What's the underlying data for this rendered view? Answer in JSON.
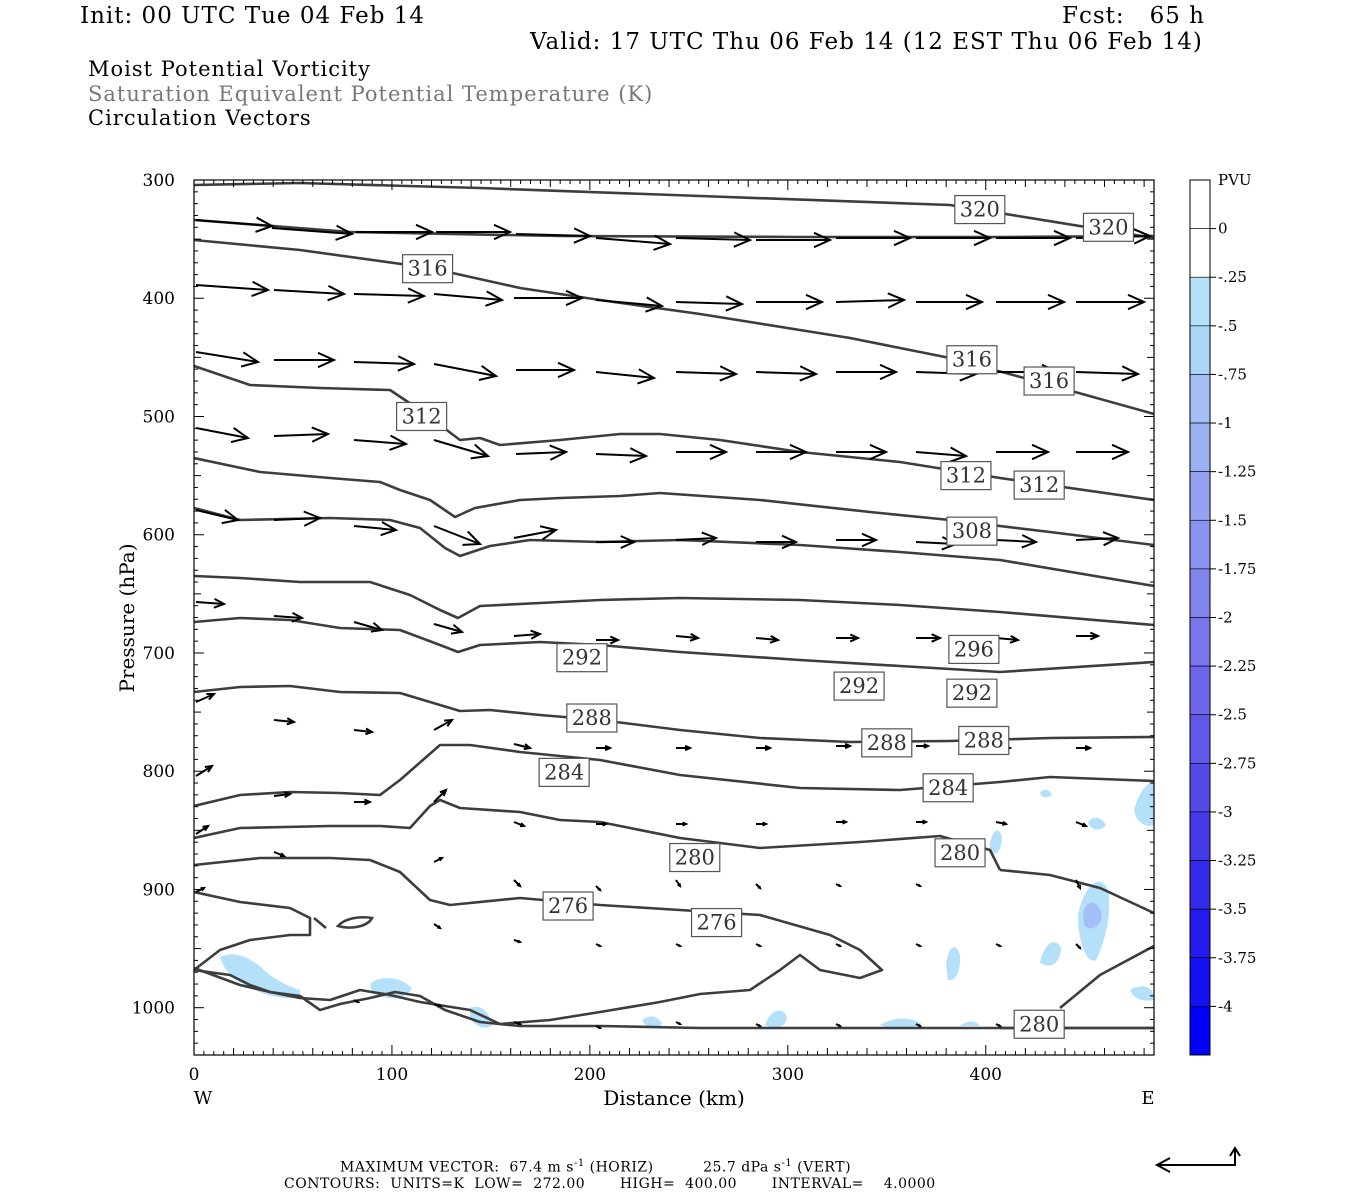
{
  "header": {
    "init": "Init: 00 UTC Tue 04 Feb 14",
    "fcst": "Fcst:   65 h",
    "valid": "Valid: 17 UTC Thu 06 Feb 14 (12 EST Thu 06 Feb 14)",
    "fields": [
      "Moist Potential Vorticity",
      "Saturation Equivalent Potential Temperature (K)",
      "Circulation Vectors"
    ]
  },
  "footer": {
    "max_vector_label": "MAXIMUM VECTOR:",
    "horiz_value": "67.4 m s",
    "horiz_exp": "-1",
    "horiz_tag": "(HORIZ)",
    "vert_value": "25.7 dPa s",
    "vert_exp": "-1",
    "vert_tag": "(VERT)",
    "contours": "CONTOURS:  UNITS=K  LOW=  272.00       HIGH=  400.00       INTERVAL=    4.0000"
  },
  "colors": {
    "contour": "#3d3d3d",
    "vector": "#000000",
    "mpv_light": "#b4e0fa",
    "mpv_mid": "#a4bff5"
  },
  "chart_data": {
    "type": "contour",
    "xlabel": "Distance (km)",
    "ylabel": "Pressure (hPa)",
    "xlim": [
      0,
      485
    ],
    "ylim": [
      1040,
      300
    ],
    "y_scale": "linear, reversed",
    "x_ticks": [
      0,
      100,
      200,
      300,
      400
    ],
    "y_ticks": [
      300,
      400,
      500,
      600,
      700,
      800,
      900,
      1000
    ],
    "x_end_labels": {
      "left": "W",
      "right": "E"
    },
    "contour_labels": [
      {
        "value": "320",
        "x": 397,
        "p": 325
      },
      {
        "value": "320",
        "x": 462,
        "p": 340
      },
      {
        "value": "316",
        "x": 118,
        "p": 375
      },
      {
        "value": "316",
        "x": 393,
        "p": 452
      },
      {
        "value": "316",
        "x": 432,
        "p": 470
      },
      {
        "value": "312",
        "x": 115,
        "p": 500
      },
      {
        "value": "312",
        "x": 390,
        "p": 550
      },
      {
        "value": "312",
        "x": 427,
        "p": 558
      },
      {
        "value": "308",
        "x": 393,
        "p": 597
      },
      {
        "value": "296",
        "x": 394,
        "p": 697
      },
      {
        "value": "292",
        "x": 196,
        "p": 704
      },
      {
        "value": "292",
        "x": 336,
        "p": 728
      },
      {
        "value": "292",
        "x": 393,
        "p": 734
      },
      {
        "value": "288",
        "x": 201,
        "p": 755
      },
      {
        "value": "288",
        "x": 350,
        "p": 776
      },
      {
        "value": "288",
        "x": 399,
        "p": 774
      },
      {
        "value": "284",
        "x": 187,
        "p": 801
      },
      {
        "value": "284",
        "x": 381,
        "p": 814
      },
      {
        "value": "280",
        "x": 253,
        "p": 873
      },
      {
        "value": "280",
        "x": 387,
        "p": 869
      },
      {
        "value": "280",
        "x": 427,
        "p": 1014
      },
      {
        "value": "276",
        "x": 189,
        "p": 914
      },
      {
        "value": "276",
        "x": 264,
        "p": 928
      }
    ],
    "colorbar": {
      "title": "PVU",
      "labels": [
        "0",
        "-.25",
        "-.5",
        "-.75",
        "-1",
        "-1.25",
        "-1.5",
        "-1.75",
        "-2",
        "-2.25",
        "-2.5",
        "-2.75",
        "-3",
        "-3.25",
        "-3.5",
        "-3.75",
        "-4"
      ],
      "colors": [
        "#ffffff",
        "#ffffff",
        "#b4e0fa",
        "#acd6f8",
        "#a4bff5",
        "#9bb1f3",
        "#93a2f1",
        "#8a93ef",
        "#8284ed",
        "#7a75eb",
        "#6f66ea",
        "#6257e8",
        "#5448e7",
        "#4539e8",
        "#352ae9",
        "#231bec",
        "#1410f0",
        "#0000ff"
      ]
    }
  }
}
